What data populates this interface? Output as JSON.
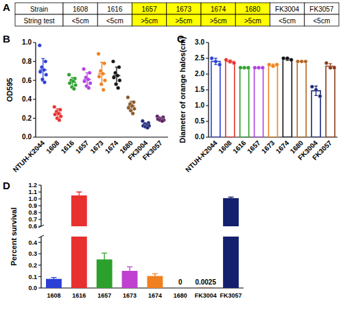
{
  "table": {
    "panel": "A",
    "rows": [
      [
        "Strain",
        "1608",
        "1616",
        "1657",
        "1673",
        "1674",
        "1680",
        "FK3004",
        "FK3057"
      ],
      [
        "String test",
        "<5cm",
        "<5cm",
        ">5cm",
        ">5cm",
        ">5cm",
        ">5cm",
        "<5cm",
        "<5cm"
      ]
    ],
    "highlight": {
      "columns": [
        3,
        4,
        5,
        6
      ],
      "color": "#ffff00"
    }
  },
  "chart_data": [
    {
      "panel": "B",
      "type": "dot",
      "ylabel": "OD595",
      "categories": [
        "NTUH-K2044",
        "1608",
        "1616",
        "1657",
        "1673",
        "1674",
        "1680",
        "FK3004",
        "FK3057"
      ],
      "values": [
        0.71,
        0.25,
        0.58,
        0.61,
        0.67,
        0.65,
        0.33,
        0.13,
        0.19
      ],
      "errors": [
        0.12,
        0.05,
        0.05,
        0.07,
        0.12,
        0.09,
        0.05,
        0.02,
        0.02
      ],
      "points": [
        [
          0.97,
          0.8,
          0.74,
          0.71,
          0.69,
          0.66,
          0.61,
          0.58
        ],
        [
          0.32,
          0.29,
          0.27,
          0.25,
          0.24,
          0.22,
          0.2,
          0.18
        ],
        [
          0.66,
          0.62,
          0.6,
          0.59,
          0.57,
          0.55,
          0.53,
          0.51
        ],
        [
          0.72,
          0.68,
          0.63,
          0.61,
          0.59,
          0.57,
          0.54,
          0.52
        ],
        [
          0.88,
          0.78,
          0.7,
          0.67,
          0.64,
          0.6,
          0.56,
          0.5
        ],
        [
          0.8,
          0.74,
          0.68,
          0.65,
          0.63,
          0.6,
          0.56,
          0.52
        ],
        [
          0.42,
          0.37,
          0.35,
          0.33,
          0.31,
          0.3,
          0.28,
          0.25
        ],
        [
          0.17,
          0.15,
          0.14,
          0.13,
          0.12,
          0.12,
          0.11,
          0.1
        ],
        [
          0.22,
          0.21,
          0.2,
          0.19,
          0.19,
          0.18,
          0.18,
          0.17
        ]
      ],
      "colors": [
        "#2b3fd6",
        "#e8312f",
        "#2ca02c",
        "#b23fe0",
        "#f08020",
        "#111111",
        "#8a5a2b",
        "#1f2a7a",
        "#5a1f5f"
      ],
      "marker": "circle",
      "ylim": [
        0,
        1.0
      ],
      "yticks": [
        {
          "value": 0,
          "label": "0.0"
        },
        0.2,
        0.4,
        0.6,
        0.8,
        {
          "value": 1.0,
          "label": "1.0"
        }
      ]
    },
    {
      "panel": "C",
      "type": "bar",
      "ylabel": "Diameter of orange halos(cm)",
      "categories": [
        "NTUH-K2044",
        "1608",
        "1616",
        "1657",
        "1673",
        "1674",
        "1680",
        "FK3004",
        "FK3057"
      ],
      "values": [
        2.4,
        2.4,
        2.2,
        2.2,
        2.27,
        2.48,
        2.4,
        1.47,
        2.25
      ],
      "errors": [
        0.1,
        0.05,
        0,
        0,
        0.05,
        0.05,
        0,
        0.15,
        0.08
      ],
      "points": [
        [
          2.5,
          2.4,
          2.3
        ],
        [
          2.45,
          2.4,
          2.35
        ],
        [
          2.2,
          2.2,
          2.2
        ],
        [
          2.2,
          2.2,
          2.2
        ],
        [
          2.3,
          2.25,
          2.3
        ],
        [
          2.5,
          2.5,
          2.45
        ],
        [
          2.4,
          2.4,
          2.4
        ],
        [
          1.6,
          1.5,
          1.3
        ],
        [
          2.35,
          2.2,
          2.2
        ]
      ],
      "colors": [
        "#2b3fd6",
        "#e8312f",
        "#2ca02c",
        "#b23fe0",
        "#f08020",
        "#111111",
        "#b5651d",
        "#1f2a7a",
        "#8b3a1a"
      ],
      "marker": "circle",
      "ylim": [
        0,
        3.0
      ],
      "yticks": [
        {
          "value": 0,
          "label": "0.0"
        },
        0.5,
        {
          "value": 1.0,
          "label": "1.0"
        },
        1.5,
        {
          "value": 2.0,
          "label": "2.0"
        },
        2.5,
        {
          "value": 3.0,
          "label": "3.0"
        }
      ]
    },
    {
      "panel": "D",
      "type": "bar",
      "ylabel": "Percent survival",
      "categories": [
        "1608",
        "1616",
        "1657",
        "1673",
        "1674",
        "1680",
        "FK3004",
        "FK3057"
      ],
      "values": [
        0.08,
        1.05,
        0.25,
        0.15,
        0.105,
        0,
        0.0025,
        1.01
      ],
      "errors": [
        0.012,
        0.05,
        0.055,
        0.035,
        0.02,
        0,
        0,
        0.015
      ],
      "colors": [
        "#2b3fd6",
        "#e8312f",
        "#2ca02c",
        "#c040d0",
        "#f08020",
        "#8b4513",
        "#8b4513",
        "#14206e"
      ],
      "data_labels": true,
      "value_labels": [
        null,
        null,
        null,
        null,
        null,
        "0",
        "0.0025",
        null
      ],
      "ylim": [
        0,
        1.2
      ],
      "ybreak": [
        0.45,
        0.6
      ],
      "yticks": [
        {
          "value": 0,
          "label": "0.0"
        },
        0.1,
        0.2,
        0.3,
        0.4,
        0.6,
        0.7,
        0.8,
        0.9,
        {
          "value": 1.0,
          "label": "1.0"
        },
        1.1,
        1.2
      ]
    }
  ]
}
